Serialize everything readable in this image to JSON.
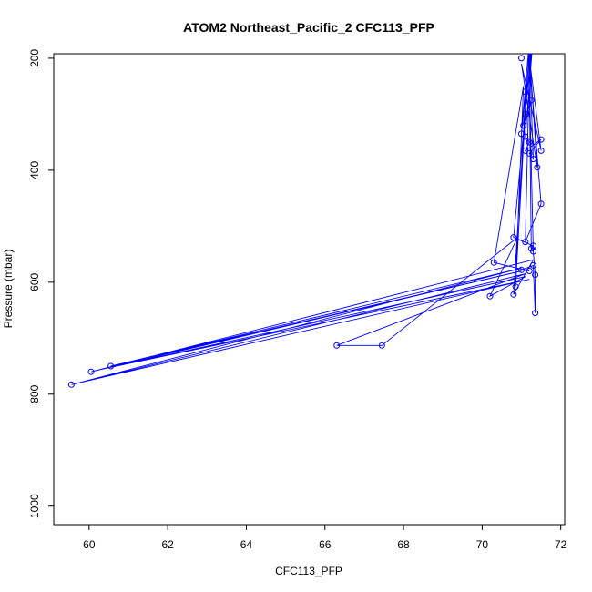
{
  "chart_data": {
    "type": "line",
    "title": "ATOM2 Northeast_Pacific_2 CFC113_PFP",
    "xlabel": "CFC113_PFP",
    "ylabel": "Pressure (mbar)",
    "xlim": [
      59.1,
      72.1
    ],
    "ylim": [
      1033,
      192
    ],
    "y_reversed": true,
    "x_ticks": [
      60,
      62,
      64,
      66,
      68,
      70,
      72
    ],
    "y_ticks": [
      200,
      400,
      600,
      800,
      1000
    ],
    "grid": false,
    "legend": "none",
    "series": [
      {
        "color": "#0000ff",
        "marker": "open-circle",
        "points": [
          [
            71.3,
            130
          ],
          [
            71.1,
            260
          ],
          [
            71.3,
            150
          ],
          [
            71.25,
            275
          ],
          [
            71.1,
            300
          ],
          [
            71.05,
            320
          ],
          [
            71.0,
            335
          ],
          [
            71.1,
            340
          ],
          [
            71.5,
            345
          ],
          [
            71.2,
            350
          ],
          [
            71.1,
            365
          ],
          [
            71.5,
            365
          ],
          [
            71.2,
            370
          ],
          [
            71.3,
            380
          ],
          [
            71.4,
            395
          ],
          [
            71.0,
            200
          ],
          [
            71.5,
            460
          ],
          [
            70.8,
            520
          ],
          [
            71.1,
            528
          ],
          [
            71.3,
            535
          ],
          [
            71.25,
            540
          ],
          [
            71.3,
            545
          ],
          [
            70.3,
            565
          ],
          [
            71.3,
            570
          ],
          [
            71.0,
            578
          ],
          [
            71.2,
            580
          ],
          [
            71.35,
            587
          ],
          [
            70.85,
            608
          ],
          [
            70.8,
            622
          ],
          [
            70.2,
            625
          ],
          [
            71.35,
            655
          ],
          [
            67.45,
            713
          ],
          [
            66.3,
            713
          ],
          [
            60.55,
            750
          ],
          [
            60.05,
            760
          ],
          [
            59.55,
            783
          ]
        ],
        "path_order": [
          [
            71.2,
            170
          ],
          [
            71.0,
            335
          ],
          [
            71.3,
            140
          ],
          [
            71.1,
            300
          ],
          [
            71.2,
            180
          ],
          [
            71.25,
            275
          ],
          [
            71.05,
            320
          ],
          [
            71.3,
            160
          ],
          [
            71.1,
            340
          ],
          [
            71.2,
            350
          ],
          [
            71.1,
            365
          ],
          [
            71.5,
            345
          ],
          [
            71.2,
            370
          ],
          [
            71.3,
            380
          ],
          [
            71.2,
            190
          ],
          [
            71.4,
            395
          ],
          [
            71.0,
            210
          ],
          [
            71.5,
            365
          ],
          [
            71.2,
            200
          ],
          [
            71.5,
            460
          ],
          [
            71.1,
            528
          ],
          [
            71.2,
            220
          ],
          [
            70.8,
            520
          ],
          [
            71.3,
            535
          ],
          [
            71.25,
            540
          ],
          [
            71.2,
            240
          ],
          [
            71.3,
            545
          ],
          [
            71.35,
            587
          ],
          [
            71.35,
            655
          ],
          [
            71.3,
            570
          ],
          [
            71.0,
            578
          ],
          [
            71.2,
            580
          ],
          [
            70.3,
            565
          ],
          [
            71.05,
            250
          ],
          [
            70.85,
            608
          ],
          [
            71.15,
            230
          ],
          [
            70.8,
            622
          ],
          [
            71.3,
            560
          ],
          [
            60.05,
            760
          ],
          [
            71.0,
            580
          ],
          [
            60.55,
            750
          ],
          [
            71.0,
            575
          ],
          [
            59.55,
            783
          ],
          [
            71.1,
            585
          ],
          [
            66.3,
            713
          ],
          [
            67.45,
            713
          ],
          [
            70.9,
            520
          ],
          [
            70.2,
            625
          ],
          [
            71.1,
            590
          ],
          [
            60.55,
            752
          ],
          [
            71.2,
            595
          ],
          [
            59.6,
            782
          ]
        ]
      }
    ]
  }
}
